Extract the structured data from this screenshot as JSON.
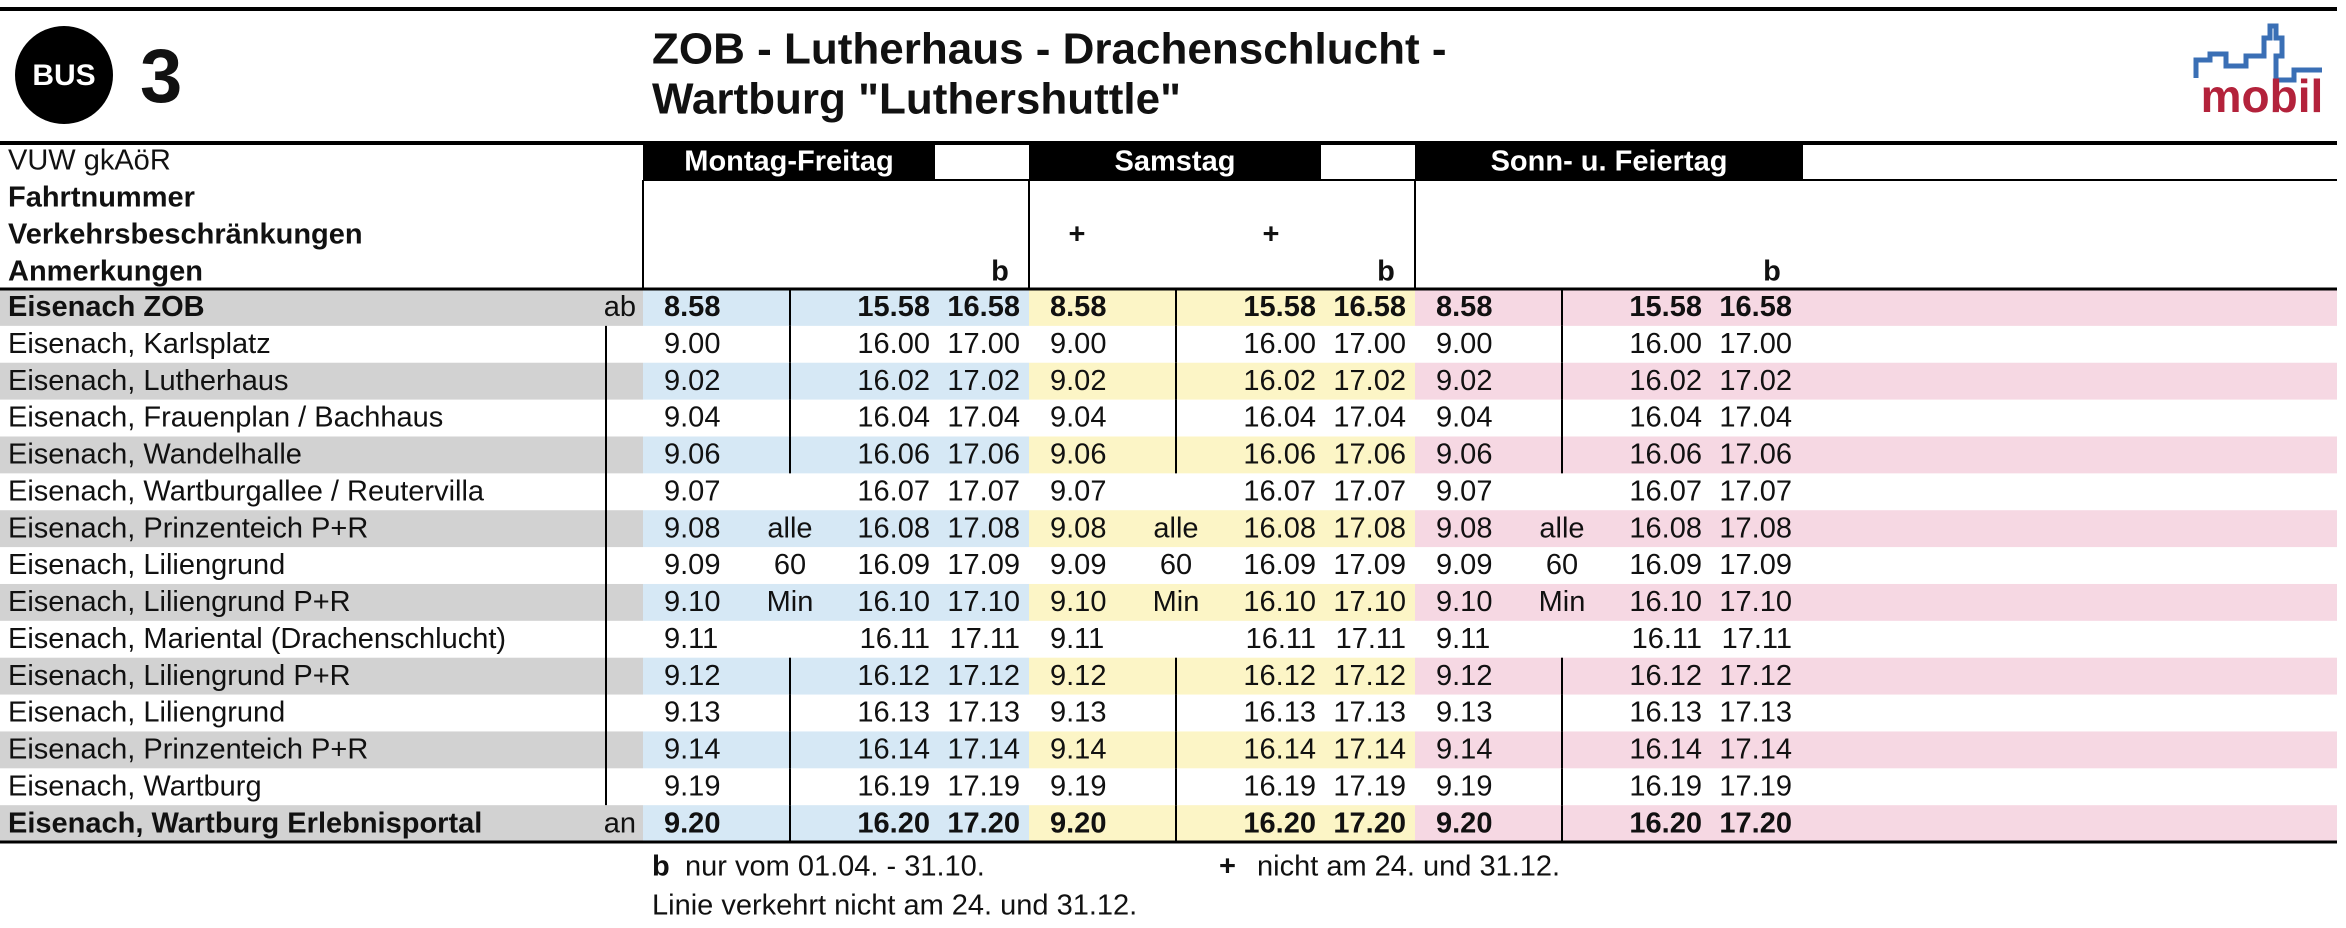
{
  "header": {
    "badge": "BUS",
    "line": "3",
    "title_line1": "ZOB - Lutherhaus - Drachenschlucht -",
    "title_line2": "Wartburg \"Luthershuttle\"",
    "logo": "mobil"
  },
  "operator": "VUW gkAöR",
  "row_labels": {
    "trip_number": "Fahrtnummer",
    "restrictions": "Verkehrsbeschränkungen",
    "remarks": "Anmerkungen"
  },
  "stops": [
    {
      "name": "Eisenach ZOB",
      "mark": "ab"
    },
    {
      "name": "Eisenach, Karlsplatz"
    },
    {
      "name": "Eisenach, Lutherhaus"
    },
    {
      "name": "Eisenach, Frauenplan / Bachhaus"
    },
    {
      "name": "Eisenach, Wandelhalle"
    },
    {
      "name": "Eisenach, Wartburgallee / Reutervilla"
    },
    {
      "name": "Eisenach, Prinzenteich P+R"
    },
    {
      "name": "Eisenach, Liliengrund"
    },
    {
      "name": "Eisenach, Liliengrund P+R"
    },
    {
      "name": "Eisenach, Mariental (Drachenschlucht)"
    },
    {
      "name": "Eisenach, Liliengrund P+R"
    },
    {
      "name": "Eisenach, Liliengrund"
    },
    {
      "name": "Eisenach, Prinzenteich P+R"
    },
    {
      "name": "Eisenach, Wartburg"
    },
    {
      "name": "Eisenach, Wartburg Erlebnisportal",
      "mark": "an"
    }
  ],
  "day_groups": [
    {
      "name": "Montag-Freitag",
      "color": "#d6e8f5",
      "restrictions": [
        null,
        null,
        null,
        null
      ],
      "remarks": [
        null,
        null,
        null,
        "b"
      ],
      "interval": [
        null,
        null,
        null,
        null,
        null,
        null,
        "alle",
        "60",
        "Min",
        null,
        null,
        null,
        null,
        null,
        null
      ],
      "times": [
        [
          "8.58",
          "15.58",
          "16.58"
        ],
        [
          "9.00",
          "16.00",
          "17.00"
        ],
        [
          "9.02",
          "16.02",
          "17.02"
        ],
        [
          "9.04",
          "16.04",
          "17.04"
        ],
        [
          "9.06",
          "16.06",
          "17.06"
        ],
        [
          "9.07",
          "16.07",
          "17.07"
        ],
        [
          "9.08",
          "16.08",
          "17.08"
        ],
        [
          "9.09",
          "16.09",
          "17.09"
        ],
        [
          "9.10",
          "16.10",
          "17.10"
        ],
        [
          "9.11",
          "16.11",
          "17.11"
        ],
        [
          "9.12",
          "16.12",
          "17.12"
        ],
        [
          "9.13",
          "16.13",
          "17.13"
        ],
        [
          "9.14",
          "16.14",
          "17.14"
        ],
        [
          "9.19",
          "16.19",
          "17.19"
        ],
        [
          "9.20",
          "16.20",
          "17.20"
        ]
      ]
    },
    {
      "name": "Samstag",
      "color": "#fcf5c6",
      "restrictions": [
        "+",
        null,
        "+",
        null
      ],
      "remarks": [
        null,
        null,
        null,
        "b"
      ],
      "interval": [
        null,
        null,
        null,
        null,
        null,
        null,
        "alle",
        "60",
        "Min",
        null,
        null,
        null,
        null,
        null,
        null
      ],
      "times": [
        [
          "8.58",
          "15.58",
          "16.58"
        ],
        [
          "9.00",
          "16.00",
          "17.00"
        ],
        [
          "9.02",
          "16.02",
          "17.02"
        ],
        [
          "9.04",
          "16.04",
          "17.04"
        ],
        [
          "9.06",
          "16.06",
          "17.06"
        ],
        [
          "9.07",
          "16.07",
          "17.07"
        ],
        [
          "9.08",
          "16.08",
          "17.08"
        ],
        [
          "9.09",
          "16.09",
          "17.09"
        ],
        [
          "9.10",
          "16.10",
          "17.10"
        ],
        [
          "9.11",
          "16.11",
          "17.11"
        ],
        [
          "9.12",
          "16.12",
          "17.12"
        ],
        [
          "9.13",
          "16.13",
          "17.13"
        ],
        [
          "9.14",
          "16.14",
          "17.14"
        ],
        [
          "9.19",
          "16.19",
          "17.19"
        ],
        [
          "9.20",
          "16.20",
          "17.20"
        ]
      ]
    },
    {
      "name": "Sonn- u. Feiertag",
      "color": "#f6d8e3",
      "restrictions": [
        null,
        null,
        null,
        null
      ],
      "remarks": [
        null,
        null,
        null,
        "b"
      ],
      "interval": [
        null,
        null,
        null,
        null,
        null,
        null,
        "alle",
        "60",
        "Min",
        null,
        null,
        null,
        null,
        null,
        null
      ],
      "times": [
        [
          "8.58",
          "15.58",
          "16.58"
        ],
        [
          "9.00",
          "16.00",
          "17.00"
        ],
        [
          "9.02",
          "16.02",
          "17.02"
        ],
        [
          "9.04",
          "16.04",
          "17.04"
        ],
        [
          "9.06",
          "16.06",
          "17.06"
        ],
        [
          "9.07",
          "16.07",
          "17.07"
        ],
        [
          "9.08",
          "16.08",
          "17.08"
        ],
        [
          "9.09",
          "16.09",
          "17.09"
        ],
        [
          "9.10",
          "16.10",
          "17.10"
        ],
        [
          "9.11",
          "16.11",
          "17.11"
        ],
        [
          "9.12",
          "16.12",
          "17.12"
        ],
        [
          "9.13",
          "16.13",
          "17.13"
        ],
        [
          "9.14",
          "16.14",
          "17.14"
        ],
        [
          "9.19",
          "16.19",
          "17.19"
        ],
        [
          "9.20",
          "16.20",
          "17.20"
        ]
      ]
    }
  ],
  "footnotes": [
    {
      "symbol": "b",
      "text": "nur vom 01.04. - 31.10."
    },
    {
      "symbol": "+",
      "text": "nicht am 24. und 31.12."
    }
  ],
  "footer_note": "Linie verkehrt nicht am 24. und 31.12."
}
